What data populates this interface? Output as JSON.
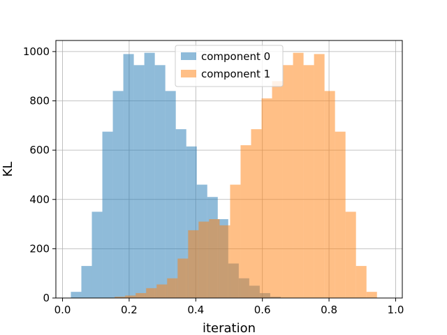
{
  "chart_data": {
    "type": "bar",
    "title": "",
    "xlabel": "iteration",
    "ylabel": "KL",
    "xlim": [
      -0.02,
      1.02
    ],
    "ylim": [
      0,
      1045
    ],
    "x_ticks": [
      0.0,
      0.2,
      0.4,
      0.6,
      0.8,
      1.0
    ],
    "x_tick_labels": [
      "0.0",
      "0.2",
      "0.4",
      "0.6",
      "0.8",
      "1.0"
    ],
    "y_ticks": [
      0,
      200,
      400,
      600,
      800,
      1000
    ],
    "y_tick_labels": [
      "0",
      "200",
      "400",
      "600",
      "800",
      "1000"
    ],
    "grid": true,
    "legend_position": "top-center",
    "series": [
      {
        "name": "component 0",
        "color": "#1f77b4",
        "alpha": 0.5,
        "bin_start": 0.025,
        "bin_width": 0.0315,
        "values": [
          25,
          130,
          350,
          675,
          840,
          990,
          945,
          995,
          945,
          840,
          685,
          615,
          460,
          410,
          320,
          140,
          80,
          50,
          20,
          5
        ]
      },
      {
        "name": "component 1",
        "color": "#ff7f0e",
        "alpha": 0.5,
        "bin_start": 0.1565,
        "bin_width": 0.0315,
        "values": [
          5,
          10,
          20,
          40,
          55,
          80,
          160,
          275,
          310,
          320,
          295,
          460,
          620,
          685,
          810,
          880,
          945,
          995,
          945,
          990,
          840,
          675,
          350,
          130,
          25
        ]
      }
    ]
  }
}
